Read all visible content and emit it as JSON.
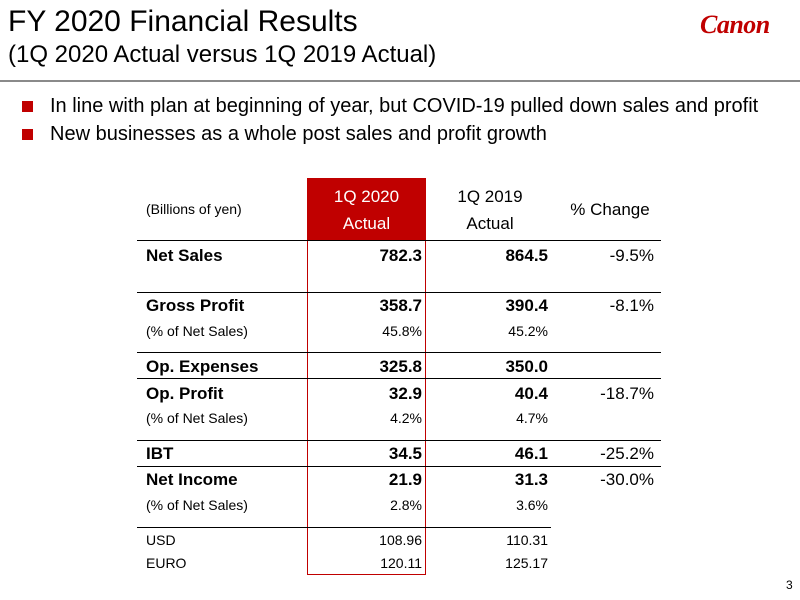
{
  "title": {
    "line1": "FY 2020 Financial Results",
    "line2": "(1Q 2020 Actual versus 1Q 2019 Actual)",
    "logo": "Canon"
  },
  "bullets": [
    "In line with plan at beginning of year, but COVID-19 pulled down sales and profit",
    "New businesses as a whole post sales and profit growth"
  ],
  "table": {
    "units": "(Billions of yen)",
    "col1": {
      "line1": "1Q 2020",
      "line2": "Actual"
    },
    "col2": {
      "line1": "1Q 2019",
      "line2": "Actual"
    },
    "col3": "% Change",
    "rows": {
      "net_sales": {
        "label": "Net Sales",
        "v2020": "782.3",
        "v2019": "864.5",
        "change": "-9.5%"
      },
      "gross_profit": {
        "label": "Gross Profit",
        "v2020": "358.7",
        "v2019": "390.4",
        "change": "-8.1%"
      },
      "gp_pct": {
        "label": "(% of Net Sales)",
        "v2020": "45.8%",
        "v2019": "45.2%"
      },
      "op_expenses": {
        "label": "Op. Expenses",
        "v2020": "325.8",
        "v2019": "350.0"
      },
      "op_profit": {
        "label": "Op. Profit",
        "v2020": "32.9",
        "v2019": "40.4",
        "change": "-18.7%"
      },
      "op_pct": {
        "label": "(% of Net Sales)",
        "v2020": "4.2%",
        "v2019": "4.7%"
      },
      "ibt": {
        "label": "IBT",
        "v2020": "34.5",
        "v2019": "46.1",
        "change": "-25.2%"
      },
      "net_income": {
        "label": "Net Income",
        "v2020": "21.9",
        "v2019": "31.3",
        "change": "-30.0%"
      },
      "ni_pct": {
        "label": "(% of Net Sales)",
        "v2020": "2.8%",
        "v2019": "3.6%"
      },
      "usd": {
        "label": "USD",
        "v2020": "108.96",
        "v2019": "110.31"
      },
      "euro": {
        "label": "EURO",
        "v2020": "120.11",
        "v2019": "125.17"
      }
    }
  },
  "page_number": "3",
  "colors": {
    "accent": "#c00000",
    "rule": "#8a8a8a"
  }
}
